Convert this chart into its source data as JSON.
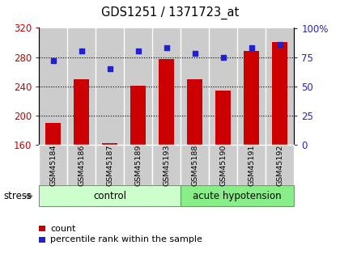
{
  "title": "GDS1251 / 1371723_at",
  "samples": [
    "GSM45184",
    "GSM45186",
    "GSM45187",
    "GSM45189",
    "GSM45193",
    "GSM45188",
    "GSM45190",
    "GSM45191",
    "GSM45192"
  ],
  "counts": [
    190,
    250,
    163,
    241,
    278,
    250,
    234,
    289,
    301
  ],
  "percentiles": [
    72,
    80,
    65,
    80,
    83,
    78,
    75,
    83,
    86
  ],
  "ylim_left": [
    160,
    320
  ],
  "ylim_right": [
    0,
    100
  ],
  "yticks_left": [
    160,
    200,
    240,
    280,
    320
  ],
  "yticks_right": [
    0,
    25,
    50,
    75,
    100
  ],
  "yticklabels_right": [
    "0",
    "25",
    "50",
    "75",
    "100%"
  ],
  "bar_color": "#cc0000",
  "dot_color": "#2222cc",
  "sample_bg": "#cccccc",
  "control_count": 5,
  "treatment_count": 4,
  "control_label": "control",
  "treatment_label": "acute hypotension",
  "stress_label": "stress",
  "group_bg_control": "#ccffcc",
  "group_bg_treatment": "#88ee88",
  "legend_count_label": "count",
  "legend_pct_label": "percentile rank within the sample",
  "fig_width": 4.2,
  "fig_height": 3.45,
  "dpi": 100
}
